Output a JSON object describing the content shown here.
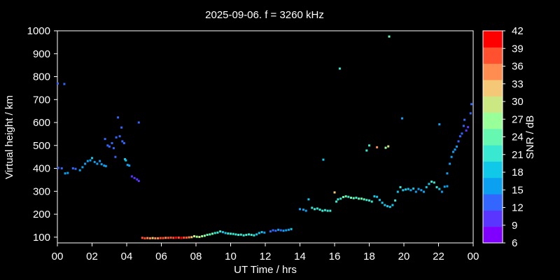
{
  "chart_data": {
    "type": "scatter",
    "title": "2025-09-06. f = 3260 kHz",
    "xlabel": "UT Time / hrs",
    "ylabel": "Virtual height / km",
    "xlim": [
      0,
      24
    ],
    "ylim": [
      75,
      1000
    ],
    "xticks": [
      "00",
      "02",
      "04",
      "06",
      "08",
      "10",
      "12",
      "14",
      "16",
      "18",
      "20",
      "22",
      "00"
    ],
    "yticks": [
      100,
      200,
      300,
      400,
      500,
      600,
      700,
      800,
      900,
      1000
    ],
    "grid": false,
    "colorbar": {
      "label": "SNR / dB",
      "min": 6,
      "max": 42,
      "ticks": [
        6,
        9,
        12,
        15,
        18,
        21,
        24,
        27,
        30,
        33,
        36,
        39,
        42
      ],
      "colors": [
        "#8000ff",
        "#5a34ff",
        "#3366ff",
        "#0ca0f0",
        "#10c8e8",
        "#38e8d0",
        "#66f8b0",
        "#99ff99",
        "#cce882",
        "#f5c878",
        "#ff8c50",
        "#ff5030",
        "#ff0000"
      ]
    },
    "points": [
      [
        0.02,
        770,
        12
      ],
      [
        0.4,
        768,
        12
      ],
      [
        0.05,
        402,
        12
      ],
      [
        0.25,
        400,
        12
      ],
      [
        0.45,
        378,
        14
      ],
      [
        0.6,
        380,
        14
      ],
      [
        0.9,
        400,
        12
      ],
      [
        1.05,
        398,
        12
      ],
      [
        1.3,
        392,
        14
      ],
      [
        1.45,
        405,
        15
      ],
      [
        1.6,
        420,
        16
      ],
      [
        1.75,
        432,
        16
      ],
      [
        1.9,
        435,
        15
      ],
      [
        2.0,
        445,
        18
      ],
      [
        2.15,
        428,
        16
      ],
      [
        2.3,
        420,
        15
      ],
      [
        2.45,
        432,
        15
      ],
      [
        2.55,
        418,
        15
      ],
      [
        2.7,
        412,
        15
      ],
      [
        2.8,
        410,
        15
      ],
      [
        2.75,
        528,
        12
      ],
      [
        2.9,
        500,
        12
      ],
      [
        3.0,
        495,
        12
      ],
      [
        3.15,
        510,
        12
      ],
      [
        3.25,
        488,
        12
      ],
      [
        3.35,
        450,
        12
      ],
      [
        3.4,
        535,
        12
      ],
      [
        3.5,
        622,
        12
      ],
      [
        3.6,
        540,
        12
      ],
      [
        3.7,
        578,
        12
      ],
      [
        3.75,
        518,
        12
      ],
      [
        3.85,
        510,
        12
      ],
      [
        3.9,
        440,
        18
      ],
      [
        3.95,
        435,
        18
      ],
      [
        4.05,
        415,
        15
      ],
      [
        4.15,
        412,
        15
      ],
      [
        4.3,
        365,
        9
      ],
      [
        4.45,
        358,
        9
      ],
      [
        4.6,
        352,
        9
      ],
      [
        4.7,
        345,
        9
      ],
      [
        4.7,
        600,
        12
      ],
      [
        4.9,
        97,
        39
      ],
      [
        5.05,
        95,
        39
      ],
      [
        5.2,
        96,
        36
      ],
      [
        5.35,
        95,
        36
      ],
      [
        5.5,
        96,
        33
      ],
      [
        5.65,
        95,
        36
      ],
      [
        5.8,
        95,
        36
      ],
      [
        5.95,
        96,
        39
      ],
      [
        6.1,
        96,
        39
      ],
      [
        6.25,
        97,
        36
      ],
      [
        6.4,
        97,
        39
      ],
      [
        6.55,
        98,
        39
      ],
      [
        6.7,
        97,
        39
      ],
      [
        6.85,
        98,
        42
      ],
      [
        7.0,
        98,
        39
      ],
      [
        7.15,
        97,
        42
      ],
      [
        7.3,
        98,
        39
      ],
      [
        7.45,
        98,
        39
      ],
      [
        7.6,
        99,
        36
      ],
      [
        7.75,
        100,
        33
      ],
      [
        7.9,
        104,
        30
      ],
      [
        8.05,
        102,
        27
      ],
      [
        8.2,
        101,
        30
      ],
      [
        8.35,
        104,
        27
      ],
      [
        8.5,
        106,
        27
      ],
      [
        8.65,
        110,
        24
      ],
      [
        8.8,
        112,
        24
      ],
      [
        8.95,
        115,
        24
      ],
      [
        9.1,
        118,
        21
      ],
      [
        9.25,
        120,
        21
      ],
      [
        9.4,
        125,
        21
      ],
      [
        9.55,
        122,
        18
      ],
      [
        9.7,
        118,
        18
      ],
      [
        9.85,
        116,
        21
      ],
      [
        10.0,
        115,
        21
      ],
      [
        10.15,
        114,
        21
      ],
      [
        10.3,
        112,
        21
      ],
      [
        10.45,
        110,
        21
      ],
      [
        10.6,
        111,
        21
      ],
      [
        10.75,
        108,
        21
      ],
      [
        10.9,
        110,
        21
      ],
      [
        11.05,
        112,
        21
      ],
      [
        11.2,
        110,
        21
      ],
      [
        11.35,
        108,
        21
      ],
      [
        11.5,
        112,
        18
      ],
      [
        11.65,
        118,
        18
      ],
      [
        11.8,
        122,
        18
      ],
      [
        11.95,
        120,
        15
      ],
      [
        12.3,
        125,
        12
      ],
      [
        12.45,
        130,
        12
      ],
      [
        12.6,
        128,
        12
      ],
      [
        12.75,
        132,
        15
      ],
      [
        12.9,
        130,
        12
      ],
      [
        13.05,
        128,
        15
      ],
      [
        13.2,
        130,
        15
      ],
      [
        13.35,
        132,
        15
      ],
      [
        13.5,
        135,
        18
      ],
      [
        14.0,
        222,
        15
      ],
      [
        14.2,
        220,
        15
      ],
      [
        14.35,
        215,
        15
      ],
      [
        14.5,
        265,
        18
      ],
      [
        14.7,
        228,
        21
      ],
      [
        14.85,
        222,
        21
      ],
      [
        15.0,
        225,
        21
      ],
      [
        15.15,
        220,
        21
      ],
      [
        15.3,
        215,
        21
      ],
      [
        15.45,
        218,
        21
      ],
      [
        15.6,
        215,
        21
      ],
      [
        15.75,
        215,
        21
      ],
      [
        15.35,
        438,
        18
      ],
      [
        16.0,
        295,
        33
      ],
      [
        16.1,
        255,
        21
      ],
      [
        16.2,
        265,
        21
      ],
      [
        16.35,
        268,
        21
      ],
      [
        16.5,
        275,
        24
      ],
      [
        16.65,
        278,
        24
      ],
      [
        16.8,
        276,
        21
      ],
      [
        16.95,
        272,
        24
      ],
      [
        17.1,
        270,
        24
      ],
      [
        17.25,
        272,
        21
      ],
      [
        17.4,
        268,
        24
      ],
      [
        17.55,
        268,
        24
      ],
      [
        17.7,
        265,
        24
      ],
      [
        17.85,
        262,
        21
      ],
      [
        18.0,
        260,
        21
      ],
      [
        18.15,
        255,
        21
      ],
      [
        18.3,
        278,
        18
      ],
      [
        18.45,
        276,
        18
      ],
      [
        18.6,
        262,
        18
      ],
      [
        18.75,
        250,
        18
      ],
      [
        18.9,
        240,
        18
      ],
      [
        19.05,
        235,
        18
      ],
      [
        19.2,
        232,
        18
      ],
      [
        19.35,
        240,
        18
      ],
      [
        19.5,
        260,
        21
      ],
      [
        16.3,
        835,
        21
      ],
      [
        17.85,
        478,
        21
      ],
      [
        18.0,
        500,
        21
      ],
      [
        18.45,
        492,
        36
      ],
      [
        18.95,
        490,
        27
      ],
      [
        19.1,
        496,
        30
      ],
      [
        19.15,
        975,
        24
      ],
      [
        19.65,
        298,
        18
      ],
      [
        19.8,
        318,
        21
      ],
      [
        19.95,
        305,
        18
      ],
      [
        20.1,
        308,
        18
      ],
      [
        20.25,
        310,
        18
      ],
      [
        20.4,
        305,
        15
      ],
      [
        20.55,
        312,
        18
      ],
      [
        20.7,
        298,
        15
      ],
      [
        20.85,
        310,
        15
      ],
      [
        21.0,
        305,
        15
      ],
      [
        21.15,
        298,
        15
      ],
      [
        21.3,
        318,
        18
      ],
      [
        21.45,
        332,
        18
      ],
      [
        21.6,
        342,
        21
      ],
      [
        21.75,
        338,
        21
      ],
      [
        21.9,
        318,
        21
      ],
      [
        22.05,
        310,
        18
      ],
      [
        22.2,
        298,
        15
      ],
      [
        22.35,
        320,
        15
      ],
      [
        22.5,
        322,
        15
      ],
      [
        19.9,
        618,
        15
      ],
      [
        22.05,
        592,
        15
      ],
      [
        22.5,
        378,
        15
      ],
      [
        22.65,
        420,
        15
      ],
      [
        22.75,
        450,
        15
      ],
      [
        22.85,
        472,
        15
      ],
      [
        22.95,
        482,
        15
      ],
      [
        23.05,
        495,
        15
      ],
      [
        23.15,
        518,
        12
      ],
      [
        23.25,
        540,
        12
      ],
      [
        23.35,
        552,
        12
      ],
      [
        23.45,
        585,
        12
      ],
      [
        23.5,
        612,
        12
      ],
      [
        23.6,
        565,
        9
      ],
      [
        23.7,
        580,
        9
      ],
      [
        23.85,
        640,
        12
      ],
      [
        23.9,
        680,
        12
      ]
    ]
  }
}
